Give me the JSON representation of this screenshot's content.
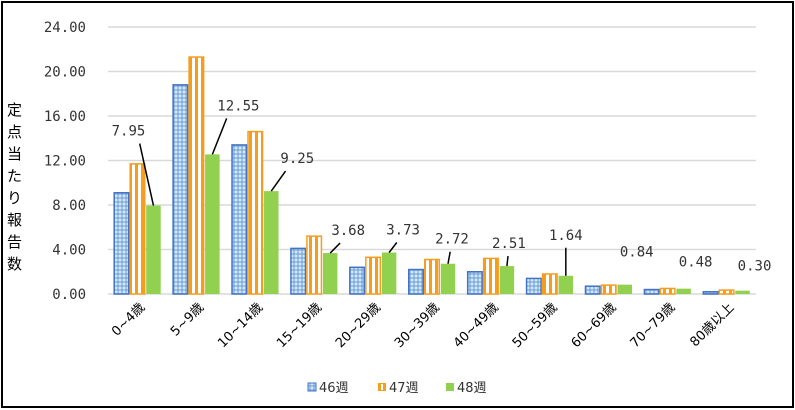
{
  "chart_data": {
    "type": "bar",
    "title": "",
    "ylabel": "定点当たり報告数",
    "xlabel": "",
    "ylim": [
      0,
      24
    ],
    "yticks": [
      "0.00",
      "4.00",
      "8.00",
      "12.00",
      "16.00",
      "20.00",
      "24.00"
    ],
    "ytick_values": [
      0,
      4,
      8,
      12,
      16,
      20,
      24
    ],
    "grid": true,
    "legend_position": "bottom",
    "categories": [
      "0~4歳",
      "5~9歳",
      "10~14歳",
      "15~19歳",
      "20~29歳",
      "30~39歳",
      "40~49歳",
      "50~59歳",
      "60~69歳",
      "70~79歳",
      "80歳以上"
    ],
    "series": [
      {
        "name": "46週",
        "color": "#4472C4",
        "pattern": "dots",
        "values": [
          9.1,
          18.8,
          13.4,
          4.1,
          2.4,
          2.2,
          2.0,
          1.4,
          0.7,
          0.4,
          0.2
        ]
      },
      {
        "name": "47週",
        "color": "#F59D1D",
        "pattern": "vertical-stripes",
        "values": [
          11.7,
          21.3,
          14.6,
          5.2,
          3.3,
          3.1,
          3.2,
          1.8,
          0.8,
          0.5,
          0.35
        ]
      },
      {
        "name": "48週",
        "color": "#92D050",
        "pattern": "solid",
        "values": [
          7.95,
          12.55,
          9.25,
          3.68,
          3.73,
          2.72,
          2.51,
          1.64,
          0.84,
          0.48,
          0.3
        ]
      }
    ],
    "data_labels": [
      "7.95",
      "12.55",
      "9.25",
      "3.68",
      "3.73",
      "2.72",
      "2.51",
      "1.64",
      "0.84",
      "0.48",
      "0.30"
    ]
  }
}
